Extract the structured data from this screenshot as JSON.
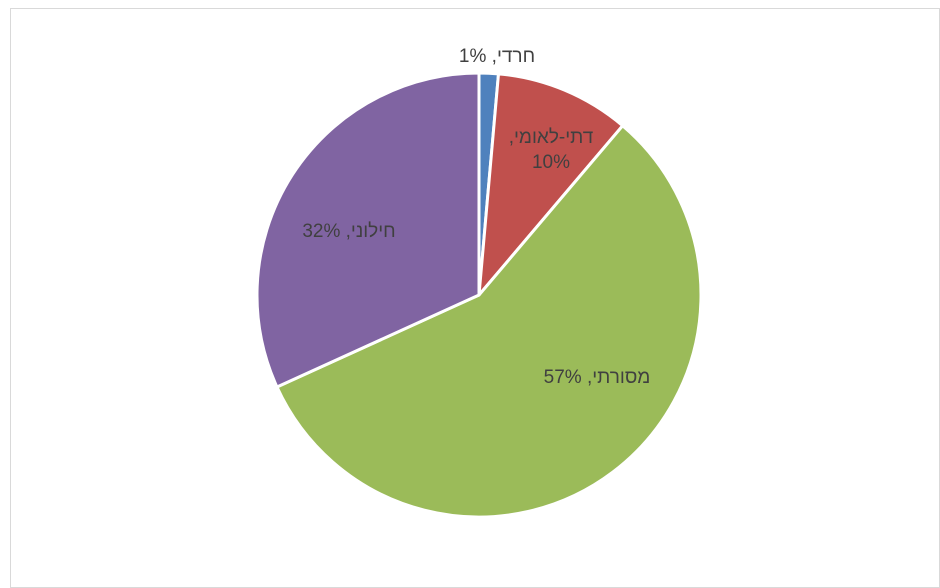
{
  "chart_data": {
    "type": "pie",
    "title": "",
    "slices": [
      {
        "label": "חרדי",
        "value": 1.4,
        "display": "חרדי, 1%",
        "color": "#4f81bd"
      },
      {
        "label": "דתי-לאומי",
        "value": 9.8,
        "display_lines": [
          "דתי-לאומי,",
          "10%"
        ],
        "color": "#c0504d"
      },
      {
        "label": "מסורתי",
        "value": 57,
        "display": "מסורתי, 57%",
        "color": "#9bbb59"
      },
      {
        "label": "חילוני",
        "value": 31.8,
        "display": "חילוני, 32%",
        "color": "#8064a2"
      }
    ]
  }
}
